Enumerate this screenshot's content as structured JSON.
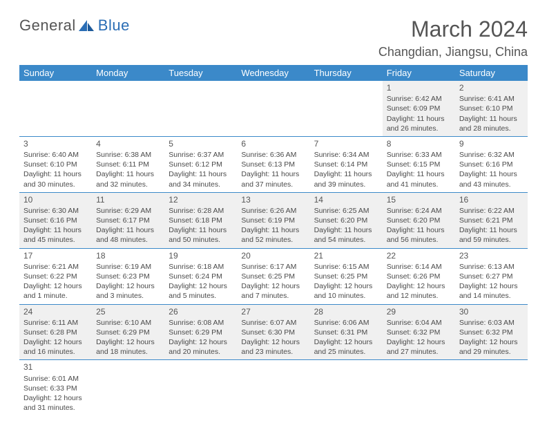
{
  "logo": {
    "text1": "General",
    "text2": "Blue"
  },
  "title": "March 2024",
  "location": "Changdian, Jiangsu, China",
  "colors": {
    "header_bg": "#3b89c9",
    "accent": "#2a6db5",
    "text": "#4a4a4a",
    "alt_row": "#f0f0f0"
  },
  "weekdays": [
    "Sunday",
    "Monday",
    "Tuesday",
    "Wednesday",
    "Thursday",
    "Friday",
    "Saturday"
  ],
  "first_weekday": 5,
  "days": [
    {
      "n": 1,
      "sr": "6:42 AM",
      "ss": "6:09 PM",
      "dl": "11 hours and 26 minutes."
    },
    {
      "n": 2,
      "sr": "6:41 AM",
      "ss": "6:10 PM",
      "dl": "11 hours and 28 minutes."
    },
    {
      "n": 3,
      "sr": "6:40 AM",
      "ss": "6:10 PM",
      "dl": "11 hours and 30 minutes."
    },
    {
      "n": 4,
      "sr": "6:38 AM",
      "ss": "6:11 PM",
      "dl": "11 hours and 32 minutes."
    },
    {
      "n": 5,
      "sr": "6:37 AM",
      "ss": "6:12 PM",
      "dl": "11 hours and 34 minutes."
    },
    {
      "n": 6,
      "sr": "6:36 AM",
      "ss": "6:13 PM",
      "dl": "11 hours and 37 minutes."
    },
    {
      "n": 7,
      "sr": "6:34 AM",
      "ss": "6:14 PM",
      "dl": "11 hours and 39 minutes."
    },
    {
      "n": 8,
      "sr": "6:33 AM",
      "ss": "6:15 PM",
      "dl": "11 hours and 41 minutes."
    },
    {
      "n": 9,
      "sr": "6:32 AM",
      "ss": "6:16 PM",
      "dl": "11 hours and 43 minutes."
    },
    {
      "n": 10,
      "sr": "6:30 AM",
      "ss": "6:16 PM",
      "dl": "11 hours and 45 minutes."
    },
    {
      "n": 11,
      "sr": "6:29 AM",
      "ss": "6:17 PM",
      "dl": "11 hours and 48 minutes."
    },
    {
      "n": 12,
      "sr": "6:28 AM",
      "ss": "6:18 PM",
      "dl": "11 hours and 50 minutes."
    },
    {
      "n": 13,
      "sr": "6:26 AM",
      "ss": "6:19 PM",
      "dl": "11 hours and 52 minutes."
    },
    {
      "n": 14,
      "sr": "6:25 AM",
      "ss": "6:20 PM",
      "dl": "11 hours and 54 minutes."
    },
    {
      "n": 15,
      "sr": "6:24 AM",
      "ss": "6:20 PM",
      "dl": "11 hours and 56 minutes."
    },
    {
      "n": 16,
      "sr": "6:22 AM",
      "ss": "6:21 PM",
      "dl": "11 hours and 59 minutes."
    },
    {
      "n": 17,
      "sr": "6:21 AM",
      "ss": "6:22 PM",
      "dl": "12 hours and 1 minute."
    },
    {
      "n": 18,
      "sr": "6:19 AM",
      "ss": "6:23 PM",
      "dl": "12 hours and 3 minutes."
    },
    {
      "n": 19,
      "sr": "6:18 AM",
      "ss": "6:24 PM",
      "dl": "12 hours and 5 minutes."
    },
    {
      "n": 20,
      "sr": "6:17 AM",
      "ss": "6:25 PM",
      "dl": "12 hours and 7 minutes."
    },
    {
      "n": 21,
      "sr": "6:15 AM",
      "ss": "6:25 PM",
      "dl": "12 hours and 10 minutes."
    },
    {
      "n": 22,
      "sr": "6:14 AM",
      "ss": "6:26 PM",
      "dl": "12 hours and 12 minutes."
    },
    {
      "n": 23,
      "sr": "6:13 AM",
      "ss": "6:27 PM",
      "dl": "12 hours and 14 minutes."
    },
    {
      "n": 24,
      "sr": "6:11 AM",
      "ss": "6:28 PM",
      "dl": "12 hours and 16 minutes."
    },
    {
      "n": 25,
      "sr": "6:10 AM",
      "ss": "6:29 PM",
      "dl": "12 hours and 18 minutes."
    },
    {
      "n": 26,
      "sr": "6:08 AM",
      "ss": "6:29 PM",
      "dl": "12 hours and 20 minutes."
    },
    {
      "n": 27,
      "sr": "6:07 AM",
      "ss": "6:30 PM",
      "dl": "12 hours and 23 minutes."
    },
    {
      "n": 28,
      "sr": "6:06 AM",
      "ss": "6:31 PM",
      "dl": "12 hours and 25 minutes."
    },
    {
      "n": 29,
      "sr": "6:04 AM",
      "ss": "6:32 PM",
      "dl": "12 hours and 27 minutes."
    },
    {
      "n": 30,
      "sr": "6:03 AM",
      "ss": "6:32 PM",
      "dl": "12 hours and 29 minutes."
    },
    {
      "n": 31,
      "sr": "6:01 AM",
      "ss": "6:33 PM",
      "dl": "12 hours and 31 minutes."
    }
  ],
  "labels": {
    "sunrise": "Sunrise:",
    "sunset": "Sunset:",
    "daylight": "Daylight:"
  }
}
